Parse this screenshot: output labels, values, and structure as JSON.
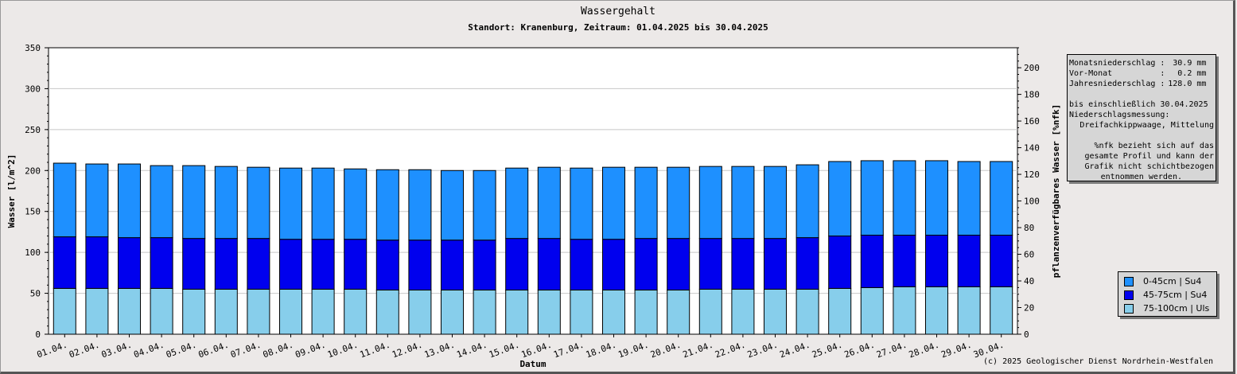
{
  "chart_data": {
    "type": "bar",
    "stacked": true,
    "title": "Wassergehalt",
    "subtitle": "Standort: Kranenburg, Zeitraum: 01.04.2025 bis 30.04.2025",
    "xlabel": "Datum",
    "ylabel": "Wasser [l/m^2]",
    "y2label": "pflanzenverfügbares Wasser [%nfk]",
    "ylim": [
      0,
      350
    ],
    "y2lim": [
      0,
      215
    ],
    "yticks": [
      0,
      50,
      100,
      150,
      200,
      250,
      300,
      350
    ],
    "y2ticks": [
      0,
      20,
      40,
      60,
      80,
      100,
      120,
      140,
      160,
      180,
      200
    ],
    "grid": true,
    "categories": [
      "01.04.",
      "02.04.",
      "03.04.",
      "04.04.",
      "05.04.",
      "06.04.",
      "07.04.",
      "08.04.",
      "09.04.",
      "10.04.",
      "11.04.",
      "12.04.",
      "13.04.",
      "14.04.",
      "15.04.",
      "16.04.",
      "17.04.",
      "18.04.",
      "19.04.",
      "20.04.",
      "21.04.",
      "22.04.",
      "23.04.",
      "24.04.",
      "25.04.",
      "26.04.",
      "27.04.",
      "28.04.",
      "29.04.",
      "30.04."
    ],
    "series": [
      {
        "name": "75-100cm | Uls",
        "color": "#87ceeb",
        "values": [
          56,
          56,
          56,
          56,
          55,
          55,
          55,
          55,
          55,
          55,
          54,
          54,
          54,
          54,
          54,
          54,
          54,
          54,
          54,
          54,
          55,
          55,
          55,
          55,
          56,
          57,
          58,
          58,
          58,
          58
        ]
      },
      {
        "name": "45-75cm | Su4",
        "color": "#0000ee",
        "values": [
          63,
          63,
          62,
          62,
          62,
          62,
          62,
          61,
          61,
          61,
          61,
          61,
          61,
          61,
          63,
          63,
          62,
          62,
          63,
          63,
          62,
          62,
          62,
          63,
          64,
          64,
          63,
          63,
          63,
          63
        ]
      },
      {
        "name": "0-45cm | Su4",
        "color": "#1e90ff",
        "values": [
          90,
          89,
          90,
          88,
          89,
          88,
          87,
          87,
          87,
          86,
          86,
          86,
          85,
          85,
          86,
          87,
          87,
          88,
          87,
          87,
          88,
          88,
          88,
          89,
          91,
          91,
          91,
          91,
          90,
          90
        ]
      }
    ],
    "legend": "bottom-right"
  },
  "info": {
    "rows": [
      {
        "label": "Monatsniederschlag :",
        "value": "30.9 mm"
      },
      {
        "label": "Vor-Monat          :",
        "value": "0.2 mm"
      },
      {
        "label": "Jahresniederschlag :",
        "value": "128.0 mm"
      }
    ],
    "until": "bis einschließlich 30.04.2025",
    "measure_label": "Niederschlagsmessung:",
    "measure_value": "Dreifachkippwaage, Mittelung",
    "note_lines": [
      "%nfk bezieht sich auf das",
      "gesamte Profil und kann der",
      "Grafik nicht schichtbezogen",
      "entnommen werden."
    ]
  },
  "credit": "(c) 2025 Geologischer Dienst Nordrhein-Westfalen"
}
